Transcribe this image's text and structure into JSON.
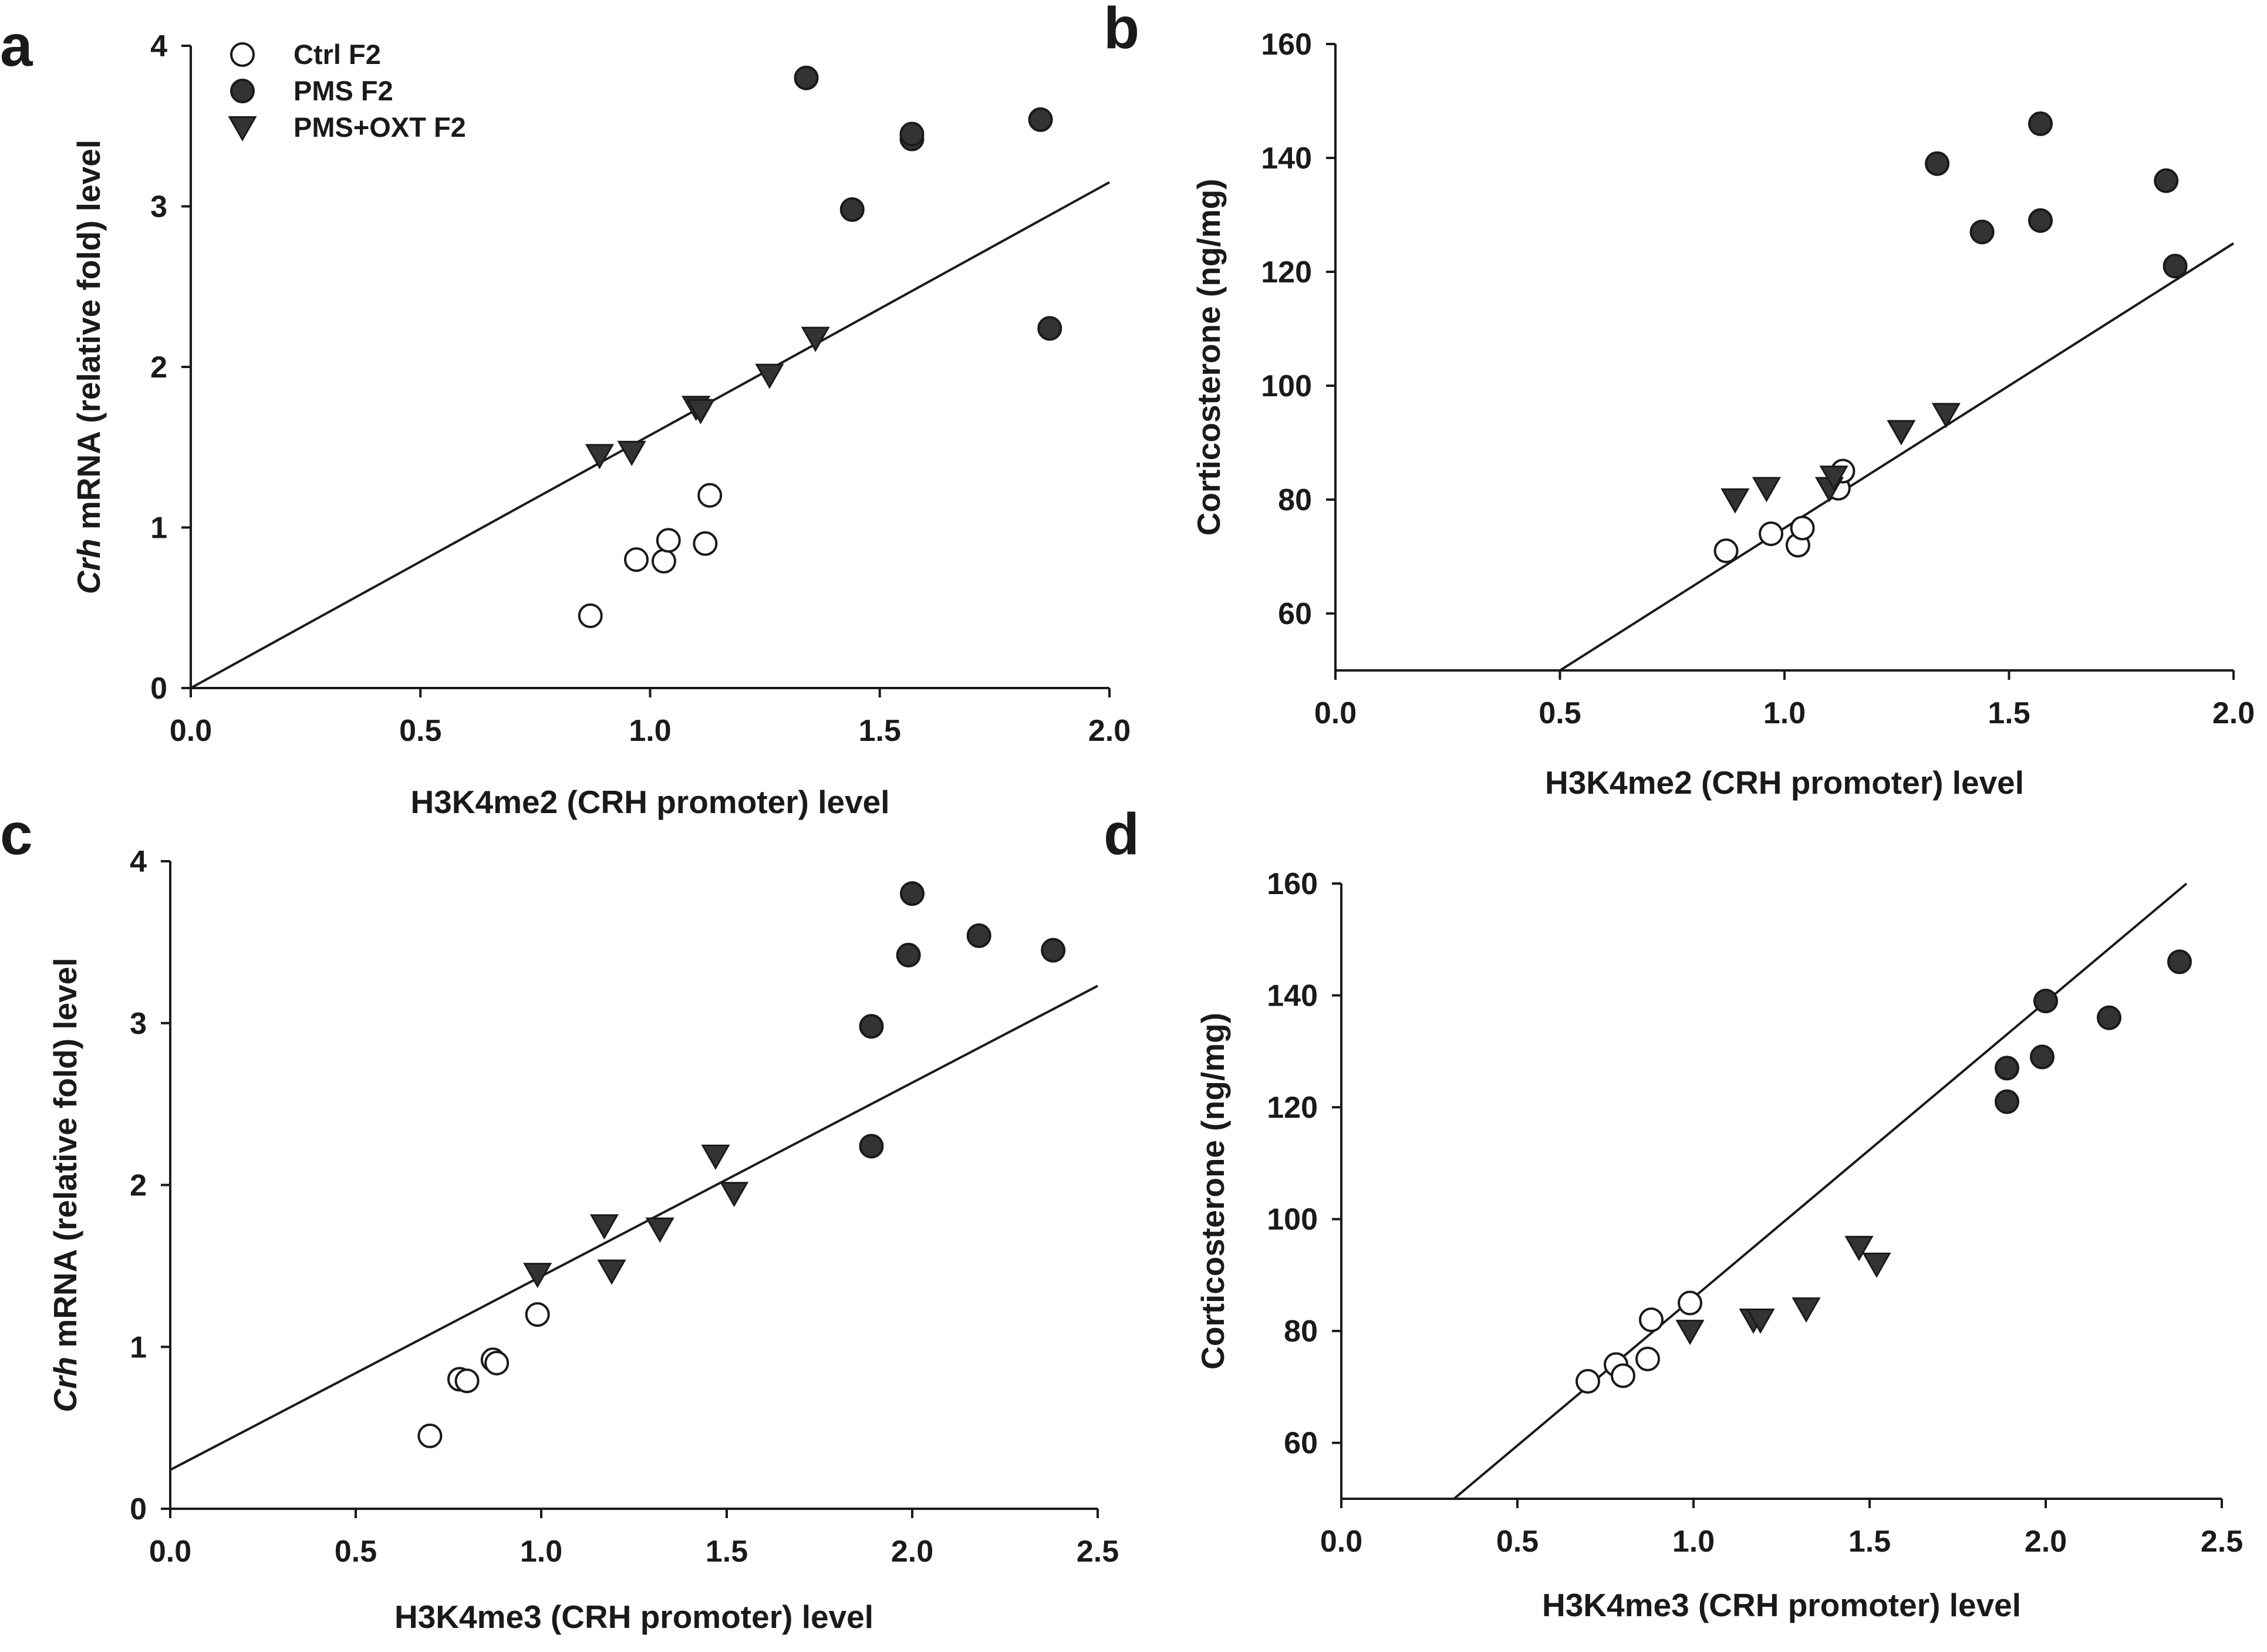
{
  "colors": {
    "ink": "#1a1a1a",
    "open_fill": "#ffffff",
    "filled": "#333333"
  },
  "legend": [
    {
      "label": "Ctrl F2",
      "marker": "open-circle"
    },
    {
      "label": "PMS F2",
      "marker": "filled-circle"
    },
    {
      "label": "PMS+OXT F2",
      "marker": "triangle-down"
    }
  ],
  "chart_data": [
    {
      "panel": "a",
      "type": "scatter",
      "xlabel": "H3K4me2 (CRH promoter) level",
      "ylabel_italic": "Crh",
      "ylabel_rest": " mRNA (relative fold) level",
      "xlim": [
        0,
        2.0
      ],
      "ylim": [
        0,
        4
      ],
      "xticks": [
        "0.0",
        "0.5",
        "1.0",
        "1.5",
        "2.0"
      ],
      "yticks": [
        "0",
        "1",
        "2",
        "3",
        "4"
      ],
      "fit_line": [
        [
          0,
          0
        ],
        [
          2.0,
          3.15
        ]
      ],
      "series": [
        {
          "name": "Ctrl F2",
          "points": [
            [
              0.87,
              0.45
            ],
            [
              0.97,
              0.8
            ],
            [
              1.03,
              0.79
            ],
            [
              1.04,
              0.92
            ],
            [
              1.12,
              0.9
            ],
            [
              1.13,
              1.2
            ]
          ]
        },
        {
          "name": "PMS F2",
          "points": [
            [
              1.34,
              3.8
            ],
            [
              1.44,
              2.98
            ],
            [
              1.57,
              3.42
            ],
            [
              1.57,
              3.45
            ],
            [
              1.85,
              3.54
            ],
            [
              1.87,
              2.24
            ]
          ]
        },
        {
          "name": "PMS+OXT F2",
          "points": [
            [
              0.89,
              1.45
            ],
            [
              0.96,
              1.47
            ],
            [
              1.1,
              1.75
            ],
            [
              1.11,
              1.73
            ],
            [
              1.26,
              1.95
            ],
            [
              1.36,
              2.18
            ]
          ]
        }
      ]
    },
    {
      "panel": "b",
      "type": "scatter",
      "xlabel": "H3K4me2 (CRH promoter) level",
      "ylabel": "Corticosterone (ng/mg)",
      "xlim": [
        0,
        2.0
      ],
      "ylim": [
        50,
        160
      ],
      "xticks": [
        "0.0",
        "0.5",
        "1.0",
        "1.5",
        "2.0"
      ],
      "yticks": [
        "60",
        "80",
        "100",
        "120",
        "140",
        "160"
      ],
      "fit_line": [
        [
          0.5,
          50
        ],
        [
          2.0,
          125
        ]
      ],
      "series": [
        {
          "name": "Ctrl F2",
          "points": [
            [
              0.87,
              71
            ],
            [
              0.97,
              74
            ],
            [
              1.03,
              72
            ],
            [
              1.04,
              75
            ],
            [
              1.12,
              82
            ],
            [
              1.13,
              85
            ]
          ]
        },
        {
          "name": "PMS F2",
          "points": [
            [
              1.34,
              139
            ],
            [
              1.44,
              127
            ],
            [
              1.57,
              129
            ],
            [
              1.57,
              146
            ],
            [
              1.85,
              136
            ],
            [
              1.87,
              121
            ]
          ]
        },
        {
          "name": "PMS+OXT F2",
          "points": [
            [
              0.89,
              80
            ],
            [
              0.96,
              82
            ],
            [
              1.1,
              82
            ],
            [
              1.11,
              84
            ],
            [
              1.26,
              92
            ],
            [
              1.36,
              95
            ]
          ]
        }
      ]
    },
    {
      "panel": "c",
      "type": "scatter",
      "xlabel": "H3K4me3 (CRH promoter) level",
      "ylabel_italic": "Crh",
      "ylabel_rest": " mRNA (relative fold) level",
      "xlim": [
        0,
        2.5
      ],
      "ylim": [
        0,
        4
      ],
      "xticks": [
        "0.0",
        "0.5",
        "1.0",
        "1.5",
        "2.0",
        "2.5"
      ],
      "yticks": [
        "0",
        "1",
        "2",
        "3",
        "4"
      ],
      "fit_line": [
        [
          0,
          0.24
        ],
        [
          2.5,
          3.23
        ]
      ],
      "series": [
        {
          "name": "Ctrl F2",
          "points": [
            [
              0.7,
              0.45
            ],
            [
              0.78,
              0.8
            ],
            [
              0.8,
              0.79
            ],
            [
              0.87,
              0.92
            ],
            [
              0.88,
              0.9
            ],
            [
              0.99,
              1.2
            ]
          ]
        },
        {
          "name": "PMS F2",
          "points": [
            [
              1.89,
              2.98
            ],
            [
              1.89,
              2.24
            ],
            [
              1.99,
              3.42
            ],
            [
              2.0,
              3.8
            ],
            [
              2.18,
              3.54
            ],
            [
              2.38,
              3.45
            ]
          ]
        },
        {
          "name": "PMS+OXT F2",
          "points": [
            [
              0.99,
              1.45
            ],
            [
              1.17,
              1.75
            ],
            [
              1.19,
              1.47
            ],
            [
              1.32,
              1.73
            ],
            [
              1.47,
              2.18
            ],
            [
              1.52,
              1.95
            ]
          ]
        }
      ]
    },
    {
      "panel": "d",
      "type": "scatter",
      "xlabel": "H3K4me3 (CRH promoter) level",
      "ylabel": "Corticosterone (ng/mg)",
      "xlim": [
        0,
        2.5
      ],
      "ylim": [
        50,
        160
      ],
      "xticks": [
        "0.0",
        "0.5",
        "1.0",
        "1.5",
        "2.0",
        "2.5"
      ],
      "yticks": [
        "60",
        "80",
        "100",
        "120",
        "140",
        "160"
      ],
      "fit_line": [
        [
          0.32,
          50
        ],
        [
          2.4,
          160
        ]
      ],
      "series": [
        {
          "name": "Ctrl F2",
          "points": [
            [
              0.7,
              71
            ],
            [
              0.78,
              74
            ],
            [
              0.8,
              72
            ],
            [
              0.87,
              75
            ],
            [
              0.88,
              82
            ],
            [
              0.99,
              85
            ]
          ]
        },
        {
          "name": "PMS F2",
          "points": [
            [
              1.89,
              127
            ],
            [
              1.89,
              121
            ],
            [
              1.99,
              129
            ],
            [
              2.0,
              139
            ],
            [
              2.18,
              136
            ],
            [
              2.38,
              146
            ]
          ]
        },
        {
          "name": "PMS+OXT F2",
          "points": [
            [
              0.99,
              80
            ],
            [
              1.17,
              82
            ],
            [
              1.19,
              82
            ],
            [
              1.32,
              84
            ],
            [
              1.47,
              95
            ],
            [
              1.52,
              92
            ]
          ]
        }
      ]
    }
  ]
}
